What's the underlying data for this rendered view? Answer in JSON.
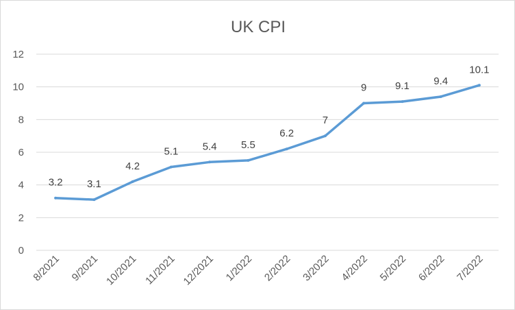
{
  "chart_data": {
    "type": "line",
    "title": "UK CPI",
    "xlabel": "",
    "ylabel": "",
    "categories": [
      "8/2021",
      "9/2021",
      "10/2021",
      "11/2021",
      "12/2021",
      "1/2022",
      "2/2022",
      "3/2022",
      "4/2022",
      "5/2022",
      "6/2022",
      "7/2022"
    ],
    "series": [
      {
        "name": "",
        "values": [
          3.2,
          3.1,
          4.2,
          5.1,
          5.4,
          5.5,
          6.2,
          7,
          9,
          9.1,
          9.4,
          10.1
        ]
      }
    ],
    "ylim": [
      0,
      12
    ],
    "yticks": [
      0,
      2,
      4,
      6,
      8,
      10,
      12
    ],
    "grid": true,
    "legend": "none",
    "data_labels": true,
    "colors": {
      "line": "#5b9bd5",
      "gridline": "#d9d9d9",
      "text": "#595959"
    }
  }
}
